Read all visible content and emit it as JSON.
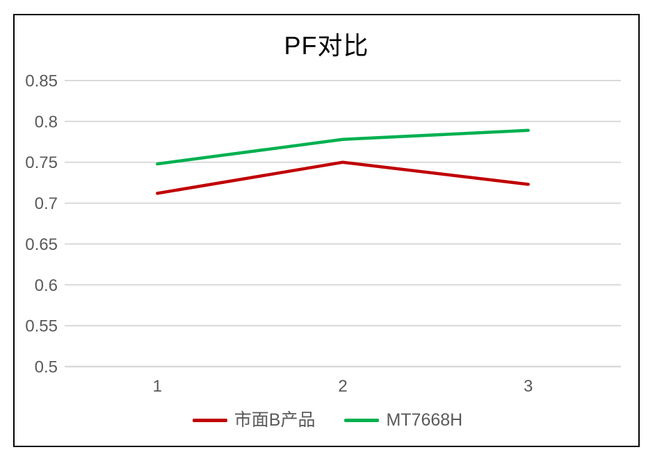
{
  "chart": {
    "title": "PF对比"
  },
  "colors": {
    "background": "#ffffff",
    "frame_border": "#000000",
    "gridline": "#d9d9d9",
    "axis_line": "#d9d9d9",
    "axis_text": "#595959",
    "title_text": "#000000",
    "legend_text": "#595959",
    "series_market_b": "#c00000",
    "series_mt7668h": "#00b050"
  },
  "chart_data": {
    "type": "line",
    "title": "PF对比",
    "categories": [
      "1",
      "2",
      "3"
    ],
    "series": [
      {
        "name": "市面B产品",
        "color": "#c00000",
        "values": [
          0.712,
          0.75,
          0.723
        ]
      },
      {
        "name": "MT7668H",
        "color": "#00b050",
        "values": [
          0.748,
          0.778,
          0.789
        ]
      }
    ],
    "xlabel": "",
    "ylabel": "",
    "ylim": [
      0.5,
      0.85
    ],
    "ytick_step": 0.05,
    "ytick_labels": [
      "0.5",
      "0.55",
      "0.6",
      "0.65",
      "0.7",
      "0.75",
      "0.8",
      "0.85"
    ],
    "grid": true,
    "legend_position": "bottom"
  }
}
